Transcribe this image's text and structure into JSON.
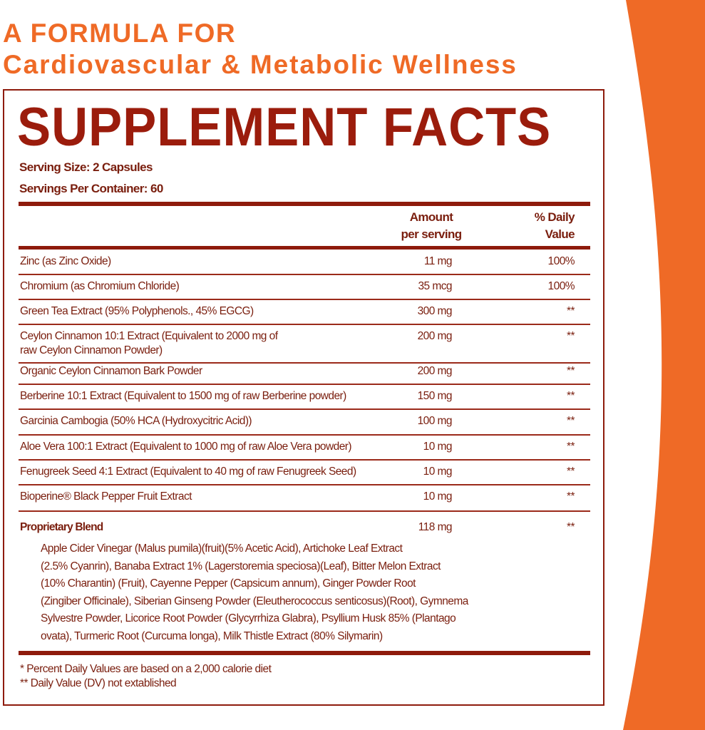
{
  "heading": {
    "line1": "A FORMULA FOR",
    "line2": "Cardiovascular & Metabolic Wellness"
  },
  "colors": {
    "accent_orange": "#ef6a26",
    "label_red": "#9b1c0c",
    "text_brown": "#7a1e0e"
  },
  "facts": {
    "title": "SUPPLEMENT FACTS",
    "serving_size": "Serving Size: 2 Capsules",
    "servings_per_container": "Servings Per Container: 60",
    "col_amount_1": "Amount",
    "col_amount_2": "per serving",
    "col_dv_1": "% Daily",
    "col_dv_2": "Value",
    "rows": [
      {
        "name": "Zinc (as Zinc Oxide)",
        "amount": "11 mg",
        "dv": "100%"
      },
      {
        "name": "Chromium (as Chromium Chloride)",
        "amount": "35 mcg",
        "dv": "100%"
      },
      {
        "name": "Green Tea Extract (95% Polyphenols., 45% EGCG)",
        "amount": "300 mg",
        "dv": "**"
      },
      {
        "name": "Ceylon Cinnamon 10:1 Extract (Equivalent to 2000 mg of",
        "name2": "raw Ceylon Cinnamon Powder)",
        "amount": "200 mg",
        "dv": "**"
      },
      {
        "name": "Organic Ceylon Cinnamon Bark Powder",
        "amount": "200 mg",
        "dv": "**"
      },
      {
        "name": "Berberine 10:1 Extract (Equivalent to 1500 mg of raw Berberine powder)",
        "amount": "150 mg",
        "dv": "**"
      },
      {
        "name": "Garcinia Cambogia (50% HCA (Hydroxycitric Acid))",
        "amount": "100 mg",
        "dv": "**"
      },
      {
        "name": "Aloe Vera 100:1 Extract (Equivalent to 1000 mg of raw Aloe Vera powder)",
        "amount": "10 mg",
        "dv": "**"
      },
      {
        "name": "Fenugreek Seed 4:1 Extract (Equivalent to 40 mg of raw Fenugreek Seed)",
        "amount": "10 mg",
        "dv": "**"
      },
      {
        "name": "Bioperine® Black Pepper Fruit Extract",
        "amount": "10 mg",
        "dv": "**"
      }
    ],
    "blend": {
      "name": "Proprietary Blend",
      "amount": "118 mg",
      "dv": "**",
      "lines": [
        "Apple Cider Vinegar (Malus pumila)(fruit)(5% Acetic Acid), Artichoke Leaf Extract",
        "(2.5% Cyanrin), Banaba Extract 1% (Lagerstoremia speciosa)(Leaf), Bitter Melon Extract",
        "(10% Charantin) (Fruit), Cayenne Pepper (Capsicum annum), Ginger Powder Root",
        "(Zingiber Officinale), Siberian Ginseng Powder (Eleutherococcus senticosus)(Root), Gymnema",
        "Sylvestre Powder, Licorice Root Powder (Glycyrrhiza Glabra), Psyllium Husk 85% (Plantago",
        "ovata), Turmeric Root (Curcuma longa), Milk Thistle Extract (80% Silymarin)"
      ]
    },
    "footnote1": "* Percent Daily Values are based on a 2,000 calorie diet",
    "footnote2": "** Daily Value (DV) not extablished"
  }
}
